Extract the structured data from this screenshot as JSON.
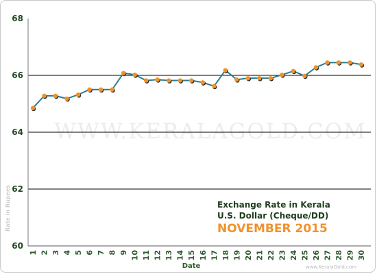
{
  "chart_data": {
    "type": "line",
    "title_line1": "Exchange Rate in Kerala",
    "title_line2": "U.S. Dollar (Cheque/DD)",
    "title_line3": "NOVEMBER 2015",
    "xlabel": "Date",
    "ylabel": "Rate in Rupees",
    "watermark": "WWW.KERALAGOLD.COM",
    "credit": "www.KeralaGold.com",
    "ylim": [
      60,
      68
    ],
    "yticks": [
      "60",
      "62",
      "64",
      "66",
      "68"
    ],
    "categories": [
      "1",
      "2",
      "3",
      "4",
      "5",
      "6",
      "7",
      "8",
      "9",
      "10",
      "11",
      "12",
      "13",
      "14",
      "15",
      "16",
      "17",
      "18",
      "19",
      "20",
      "21",
      "22",
      "23",
      "24",
      "25",
      "26",
      "27",
      "28",
      "29",
      "30"
    ],
    "series": [
      {
        "values": [
          64.85,
          65.28,
          65.28,
          65.18,
          65.32,
          65.5,
          65.5,
          65.5,
          66.08,
          66.02,
          65.82,
          65.85,
          65.82,
          65.82,
          65.82,
          65.75,
          65.62,
          66.18,
          65.85,
          65.9,
          65.9,
          65.9,
          66.02,
          66.15,
          65.98,
          66.28,
          66.45,
          66.45,
          66.45,
          66.38
        ]
      }
    ],
    "grid": true,
    "colors": {
      "line": "#2a7d8c",
      "marker": "#f0922c",
      "marker_shadow": "#2b2b2b",
      "grid": "#000000",
      "axis_text": "#244a24"
    }
  }
}
